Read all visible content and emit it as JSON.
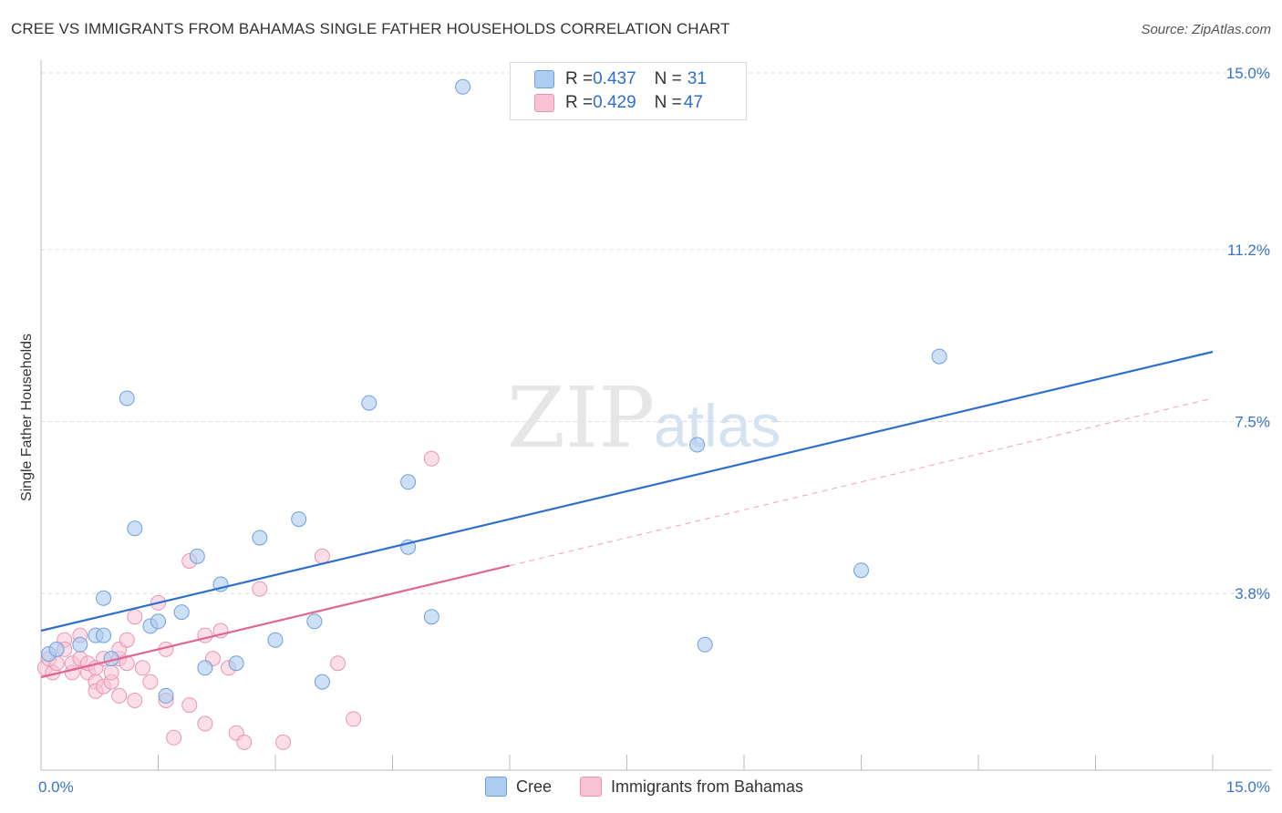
{
  "title": "CREE VS IMMIGRANTS FROM BAHAMAS SINGLE FATHER HOUSEHOLDS CORRELATION CHART",
  "source": "Source: ZipAtlas.com",
  "watermark": {
    "zip": "ZIP",
    "atlas": "atlas"
  },
  "legend_top": [
    {
      "r_label": "R = ",
      "r_value": "0.437",
      "n_label": "N = ",
      "n_value": "31"
    },
    {
      "r_label": "R = ",
      "r_value": "0.429",
      "n_label": "N = ",
      "n_value": "47"
    }
  ],
  "legend_bottom": [
    "Cree",
    "Immigrants from Bahamas"
  ],
  "colors": {
    "cree_fill": "#aecbf0",
    "cree_stroke": "#6f9fdc",
    "cree_line": "#2e6fcc",
    "bahamas_fill": "#f7c3d4",
    "bahamas_stroke": "#e995b2",
    "bahamas_line": "#e06593",
    "tick_text": "#3a74c9",
    "grid": "#dddddd"
  },
  "chart_data": {
    "type": "scatter",
    "title": "CREE VS IMMIGRANTS FROM BAHAMAS SINGLE FATHER HOUSEHOLDS CORRELATION CHART",
    "xlabel": "",
    "ylabel": "Single Father Households",
    "xlim": [
      0,
      15
    ],
    "ylim": [
      0,
      15
    ],
    "x_tick_labels": [
      "0.0%",
      "15.0%"
    ],
    "y_ticks": [
      3.8,
      7.5,
      11.2,
      15.0
    ],
    "y_tick_labels": [
      "3.8%",
      "7.5%",
      "11.2%",
      "15.0%"
    ],
    "grid": true,
    "legend_position": "top-center",
    "series": [
      {
        "name": "Cree",
        "R": 0.437,
        "N": 31,
        "trend": {
          "x": [
            0,
            15
          ],
          "y": [
            3.0,
            9.0
          ]
        },
        "points": [
          [
            0.1,
            2.5
          ],
          [
            0.2,
            2.6
          ],
          [
            0.5,
            2.7
          ],
          [
            0.7,
            2.9
          ],
          [
            0.8,
            3.7
          ],
          [
            0.8,
            2.9
          ],
          [
            0.9,
            2.4
          ],
          [
            1.1,
            8.0
          ],
          [
            1.2,
            5.2
          ],
          [
            1.4,
            3.1
          ],
          [
            1.5,
            3.2
          ],
          [
            1.6,
            1.6
          ],
          [
            1.8,
            3.4
          ],
          [
            2.0,
            4.6
          ],
          [
            2.1,
            2.2
          ],
          [
            2.3,
            4.0
          ],
          [
            2.5,
            2.3
          ],
          [
            2.8,
            5.0
          ],
          [
            3.0,
            2.8
          ],
          [
            3.3,
            5.4
          ],
          [
            3.5,
            3.2
          ],
          [
            3.6,
            1.9
          ],
          [
            4.2,
            7.9
          ],
          [
            4.7,
            6.2
          ],
          [
            4.7,
            4.8
          ],
          [
            5.0,
            3.3
          ],
          [
            5.4,
            14.7
          ],
          [
            8.4,
            7.0
          ],
          [
            8.5,
            2.7
          ],
          [
            10.5,
            4.3
          ],
          [
            11.5,
            8.9
          ]
        ]
      },
      {
        "name": "Immigrants from Bahamas",
        "R": 0.429,
        "N": 47,
        "trend": {
          "x": [
            0,
            6
          ],
          "y": [
            2.0,
            4.4
          ]
        },
        "trend_dashed": {
          "x": [
            6,
            15
          ],
          "y": [
            4.4,
            8.0
          ]
        },
        "points": [
          [
            0.05,
            2.2
          ],
          [
            0.1,
            2.4
          ],
          [
            0.15,
            2.1
          ],
          [
            0.2,
            2.3
          ],
          [
            0.3,
            2.8
          ],
          [
            0.3,
            2.6
          ],
          [
            0.4,
            2.1
          ],
          [
            0.4,
            2.3
          ],
          [
            0.5,
            2.4
          ],
          [
            0.5,
            2.9
          ],
          [
            0.6,
            2.1
          ],
          [
            0.6,
            2.3
          ],
          [
            0.7,
            1.9
          ],
          [
            0.7,
            1.7
          ],
          [
            0.7,
            2.2
          ],
          [
            0.8,
            2.4
          ],
          [
            0.8,
            1.8
          ],
          [
            0.9,
            1.9
          ],
          [
            0.9,
            2.1
          ],
          [
            1.0,
            1.6
          ],
          [
            1.0,
            2.4
          ],
          [
            1.0,
            2.6
          ],
          [
            1.1,
            2.3
          ],
          [
            1.1,
            2.8
          ],
          [
            1.2,
            1.5
          ],
          [
            1.2,
            3.3
          ],
          [
            1.3,
            2.2
          ],
          [
            1.4,
            1.9
          ],
          [
            1.5,
            3.6
          ],
          [
            1.6,
            1.5
          ],
          [
            1.6,
            2.6
          ],
          [
            1.7,
            0.7
          ],
          [
            1.9,
            4.5
          ],
          [
            1.9,
            1.4
          ],
          [
            2.1,
            1.0
          ],
          [
            2.1,
            2.9
          ],
          [
            2.2,
            2.4
          ],
          [
            2.3,
            3.0
          ],
          [
            2.4,
            2.2
          ],
          [
            2.5,
            0.8
          ],
          [
            2.6,
            0.6
          ],
          [
            2.8,
            3.9
          ],
          [
            3.1,
            0.6
          ],
          [
            3.6,
            4.6
          ],
          [
            3.8,
            2.3
          ],
          [
            4.0,
            1.1
          ],
          [
            5.0,
            6.7
          ]
        ]
      }
    ]
  }
}
